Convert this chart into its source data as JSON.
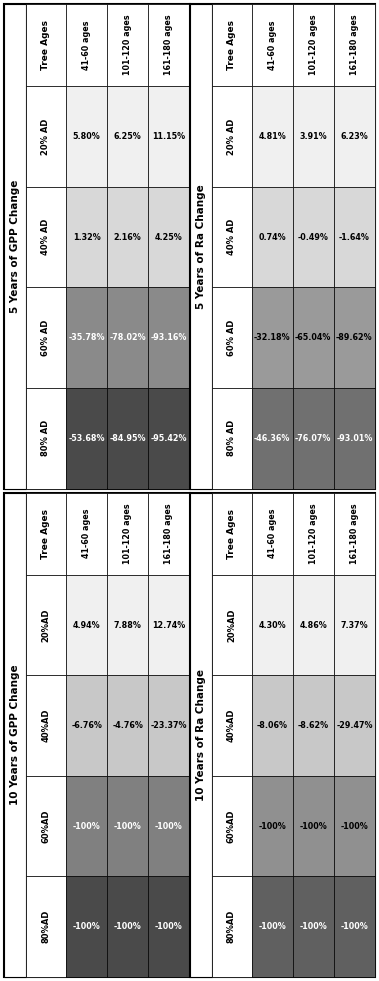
{
  "table1_title": "5 Years of GPP Change",
  "table2_title": "5 Years of Ra Change",
  "table3_title": "10 Years of GPP Change",
  "table4_title": "10 Years of Ra Change",
  "row_labels_5": [
    "Tree Ages",
    "20% AD",
    "40% AD",
    "60% AD",
    "80% AD"
  ],
  "row_labels_10": [
    "Tree Ages",
    "20%AD",
    "40%AD",
    "60%AD",
    "80%AD"
  ],
  "col_labels": [
    "41-60 ages",
    "101-120 ages",
    "161-180 ages"
  ],
  "gpp5_values": [
    [
      "5.80%",
      "6.25%",
      "11.15%"
    ],
    [
      "1.32%",
      "2.16%",
      "4.25%"
    ],
    [
      "-35.78%",
      "-78.02%",
      "-93.16%"
    ],
    [
      "-53.68%",
      "-84.95%",
      "-95.42%"
    ]
  ],
  "ra5_values": [
    [
      "4.81%",
      "3.91%",
      "6.23%"
    ],
    [
      "0.74%",
      "-0.49%",
      "-1.64%"
    ],
    [
      "-32.18%",
      "-65.04%",
      "-89.62%"
    ],
    [
      "-46.36%",
      "-76.07%",
      "-93.01%"
    ]
  ],
  "gpp10_values": [
    [
      "4.94%",
      "7.88%",
      "12.74%"
    ],
    [
      "-6.76%",
      "-4.76%",
      "-23.37%"
    ],
    [
      "-100%",
      "-100%",
      "-100%"
    ],
    [
      "-100%",
      "-100%",
      "-100%"
    ]
  ],
  "ra10_values": [
    [
      "4.30%",
      "4.86%",
      "7.37%"
    ],
    [
      "-8.06%",
      "-8.62%",
      "-29.47%"
    ],
    [
      "-100%",
      "-100%",
      "-100%"
    ],
    [
      "-100%",
      "-100%",
      "-100%"
    ]
  ],
  "gpp5_row_colors": [
    "#f0f0f0",
    "#d8d8d8",
    "#8a8a8a",
    "#4a4a4a"
  ],
  "ra5_row_colors": [
    "#f0f0f0",
    "#d8d8d8",
    "#9a9a9a",
    "#707070"
  ],
  "gpp10_row_colors": [
    "#f0f0f0",
    "#c8c8c8",
    "#808080",
    "#4a4a4a"
  ],
  "ra10_row_colors": [
    "#f0f0f0",
    "#c8c8c8",
    "#909090",
    "#606060"
  ],
  "figsize": [
    3.79,
    9.81
  ],
  "dpi": 100,
  "bg_color": "#f5f5f5"
}
